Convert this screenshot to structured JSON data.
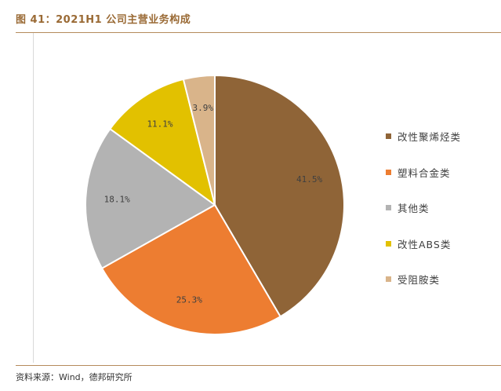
{
  "figure": {
    "title": "图 41：2021H1 公司主营业务构成",
    "source": "资料来源：Wind，德邦研究所"
  },
  "chart_data": {
    "type": "pie",
    "title": "",
    "series": [
      {
        "name": "改性聚烯烃类",
        "value": 41.5,
        "label": "41.5%",
        "color": "#8f6437"
      },
      {
        "name": "塑料合金类",
        "value": 25.3,
        "label": "25.3%",
        "color": "#ed7d31"
      },
      {
        "name": "其他类",
        "value": 18.1,
        "label": "18.1%",
        "color": "#b3b3b3"
      },
      {
        "name": "改性ABS类",
        "value": 11.1,
        "label": "11.1%",
        "color": "#e2c100"
      },
      {
        "name": "受阻胺类",
        "value": 3.9,
        "label": "3.9%",
        "color": "#d9b48a"
      }
    ],
    "start": "top",
    "direction": "clockwise",
    "legend_position": "right"
  }
}
